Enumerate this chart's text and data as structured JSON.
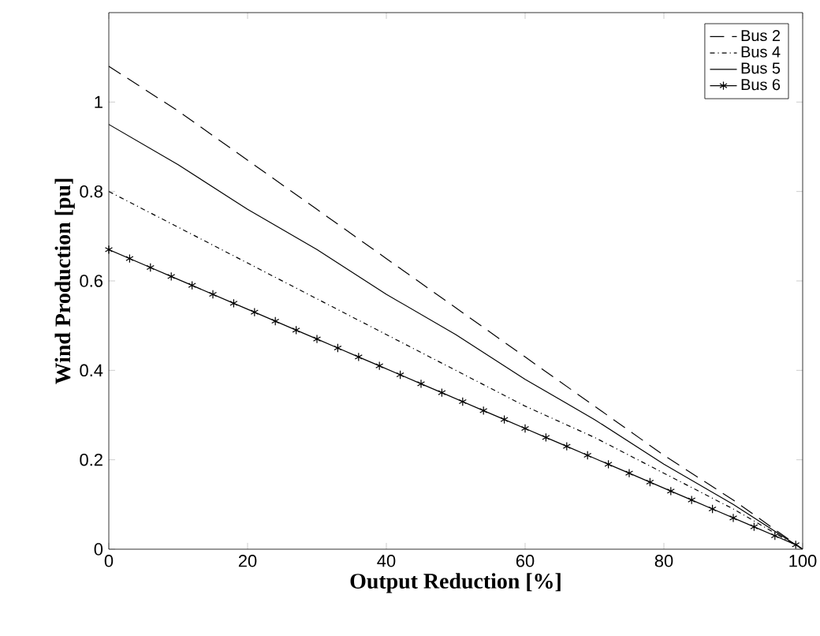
{
  "chart_data": {
    "type": "line",
    "xlabel": "Output Reduction [%]",
    "ylabel": "Wind Production [pu]",
    "xlim": [
      0,
      100
    ],
    "ylim": [
      0,
      1.2
    ],
    "xticks": [
      0,
      20,
      40,
      60,
      80,
      100
    ],
    "yticks": [
      0,
      0.2,
      0.4,
      0.6,
      0.8,
      1
    ],
    "legend": "top right",
    "grid": false,
    "x": [
      0,
      10,
      20,
      30,
      40,
      50,
      60,
      70,
      80,
      90,
      100
    ],
    "series": [
      {
        "name": "Bus 2",
        "color": "#000000",
        "line_style": "dashed",
        "marker": "none",
        "values": [
          1.08,
          0.98,
          0.87,
          0.76,
          0.65,
          0.54,
          0.43,
          0.32,
          0.21,
          0.11,
          0
        ]
      },
      {
        "name": "Bus 4",
        "color": "#000000",
        "line_style": "dashdot",
        "marker": "none",
        "values": [
          0.8,
          0.72,
          0.64,
          0.56,
          0.48,
          0.4,
          0.32,
          0.25,
          0.17,
          0.09,
          0
        ]
      },
      {
        "name": "Bus 5",
        "color": "#000000",
        "line_style": "solid",
        "marker": "none",
        "values": [
          0.95,
          0.86,
          0.76,
          0.67,
          0.57,
          0.48,
          0.38,
          0.29,
          0.19,
          0.1,
          0
        ]
      },
      {
        "name": "Bus 6",
        "color": "#000000",
        "line_style": "solid",
        "marker": "cross",
        "x": [
          0,
          3,
          6,
          9,
          12,
          15,
          18,
          21,
          24,
          27,
          30,
          33,
          36,
          39,
          42,
          45,
          48,
          51,
          54,
          57,
          60,
          63,
          66,
          69,
          72,
          75,
          78,
          81,
          84,
          87,
          90,
          93,
          96,
          99
        ],
        "values": [
          0.67,
          0.65,
          0.63,
          0.61,
          0.59,
          0.57,
          0.55,
          0.53,
          0.51,
          0.49,
          0.47,
          0.45,
          0.43,
          0.41,
          0.39,
          0.37,
          0.35,
          0.33,
          0.31,
          0.29,
          0.27,
          0.25,
          0.23,
          0.21,
          0.19,
          0.17,
          0.15,
          0.13,
          0.11,
          0.09,
          0.07,
          0.05,
          0.03,
          0.01
        ]
      }
    ]
  }
}
